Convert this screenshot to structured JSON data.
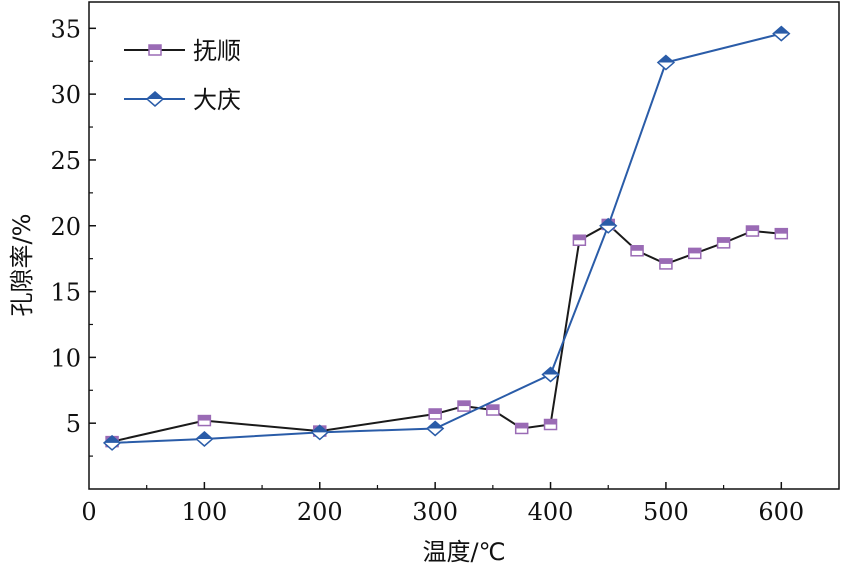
{
  "chart_data": {
    "type": "line",
    "title": "",
    "xlabel": "温度/℃",
    "ylabel": "孔隙率/%",
    "xlim": [
      0,
      650
    ],
    "ylim": [
      0,
      37
    ],
    "xticks": [
      0,
      100,
      200,
      300,
      400,
      500,
      600
    ],
    "yticks": [
      5,
      10,
      15,
      20,
      25,
      30,
      35
    ],
    "grid": false,
    "legend_position": "top-left",
    "series": [
      {
        "name": "抚顺",
        "color": "#1a1a1a",
        "marker_color": "#9a6bb5",
        "marker": "square",
        "x": [
          20,
          100,
          200,
          300,
          325,
          350,
          375,
          400,
          425,
          450,
          475,
          500,
          525,
          550,
          575,
          600
        ],
        "y": [
          3.6,
          5.2,
          4.4,
          5.7,
          6.3,
          6.0,
          4.6,
          4.9,
          18.9,
          20.1,
          18.1,
          17.1,
          17.9,
          18.7,
          19.6,
          19.4
        ]
      },
      {
        "name": "大庆",
        "color": "#2a5ca8",
        "marker_color": "#2a5ca8",
        "marker": "diamond",
        "x": [
          20,
          100,
          200,
          300,
          400,
          450,
          500,
          600
        ],
        "y": [
          3.5,
          3.8,
          4.3,
          4.6,
          8.7,
          20.0,
          32.4,
          34.6
        ]
      }
    ]
  }
}
